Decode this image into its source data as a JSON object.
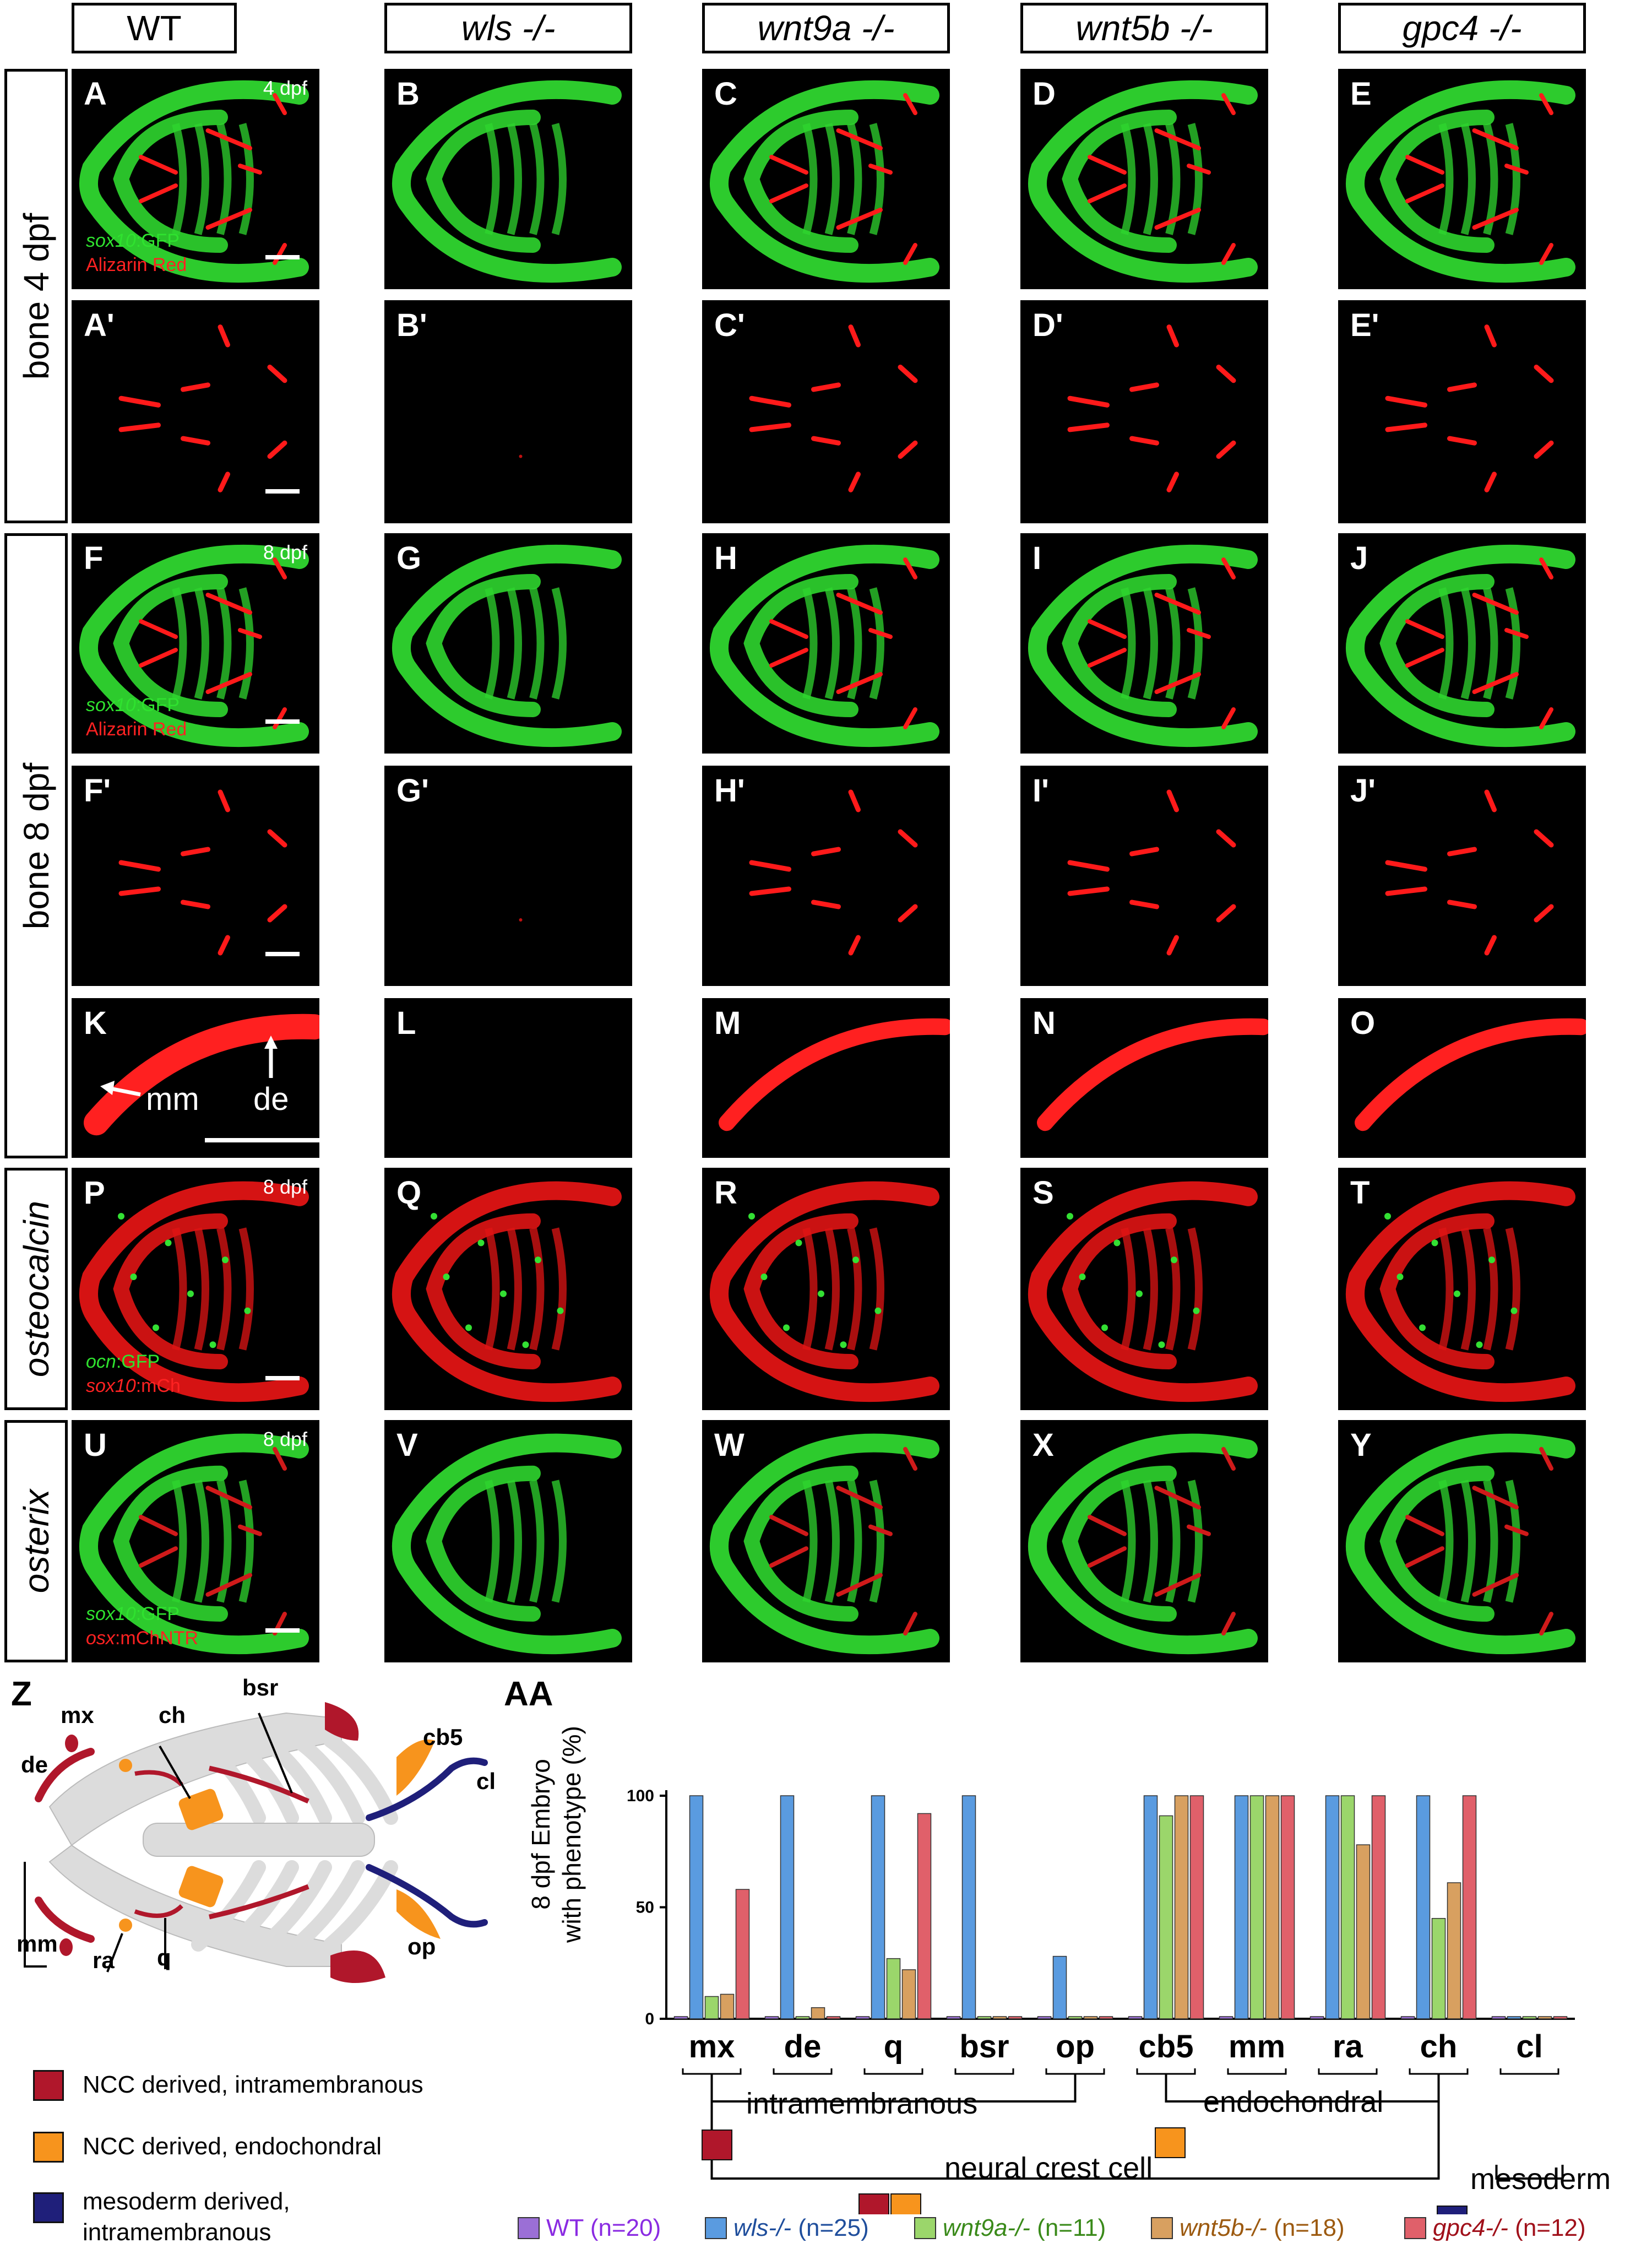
{
  "columns": [
    {
      "text": "WT",
      "italic": false
    },
    {
      "text": "wls -/-",
      "italic": true
    },
    {
      "text": "wnt9a -/-",
      "italic": true
    },
    {
      "text": "wnt5b -/-",
      "italic": true
    },
    {
      "text": "gpc4 -/-",
      "italic": true
    }
  ],
  "row_labels": {
    "bone4": "bone 4 dpf",
    "bone8": "bone 8 dpf",
    "osteocalcin": "osteocalcin",
    "osterix": "osterix"
  },
  "panels": {
    "row1": [
      "A",
      "B",
      "C",
      "D",
      "E"
    ],
    "row2": [
      "A'",
      "B'",
      "C'",
      "D'",
      "E'"
    ],
    "row3": [
      "F",
      "G",
      "H",
      "I",
      "J"
    ],
    "row4": [
      "F'",
      "G'",
      "H'",
      "I'",
      "J'"
    ],
    "row5": [
      "K",
      "L",
      "M",
      "N",
      "O"
    ],
    "row6": [
      "P",
      "Q",
      "R",
      "S",
      "T"
    ],
    "row7": [
      "U",
      "V",
      "W",
      "X",
      "Y"
    ]
  },
  "stage_labels": {
    "dpf4": "4 dpf",
    "dpf8": "8 dpf"
  },
  "captions": {
    "row1": {
      "gene": "sox10",
      "suffix": ":GFP",
      "line2": "Alizarin Red"
    },
    "row3": {
      "gene": "sox10",
      "suffix": ":GFP",
      "line2": "Alizarin Red"
    },
    "row6": {
      "gene": "ocn",
      "suffix": ":GFP",
      "gene2": "sox10",
      "suffix2": ":mCh"
    },
    "row7": {
      "gene": "sox10",
      "suffix": ":GFP",
      "gene2": "osx",
      "suffix2": ":mChNTR"
    }
  },
  "k_annotations": {
    "mm": "mm",
    "de": "de"
  },
  "diagram": {
    "panel_letter": "Z",
    "labels": {
      "mx": "mx",
      "de": "de",
      "ch": "ch",
      "bsr": "bsr",
      "cb5": "cb5",
      "cl": "cl",
      "mm": "mm",
      "ra": "ra",
      "q": "q",
      "op": "op"
    },
    "colors": {
      "ncc_intramembranous": "#b0172b",
      "ncc_endochondral": "#f7941d",
      "mesoderm": "#1f1f7a",
      "cartilage": "#dcdcdc"
    },
    "legend": [
      {
        "label": "NCC derived, intramembranous",
        "color": "#b0172b"
      },
      {
        "label": "NCC derived, endochondral",
        "color": "#f7941d"
      },
      {
        "label": "mesoderm derived,",
        "label2": "intramembranous",
        "color": "#1f1f7a"
      }
    ]
  },
  "chart_panel_letter": "AA",
  "chart_data": {
    "type": "bar",
    "ylabel_line1": "8 dpf Embryo",
    "ylabel_line2": "with phenotype (%)",
    "ylim": [
      0,
      100
    ],
    "yticks": [
      "0",
      "50",
      "100"
    ],
    "categories": [
      "mx",
      "de",
      "q",
      "bsr",
      "op",
      "cb5",
      "mm",
      "ra",
      "ch",
      "cl"
    ],
    "series": [
      {
        "name": "WT (n=20)",
        "color": "#9b6fd6",
        "values": [
          1,
          1,
          1,
          1,
          1,
          1,
          1,
          1,
          1,
          1
        ]
      },
      {
        "name": "wls-/- (n=25)",
        "color": "#5a9be0",
        "values": [
          100,
          100,
          100,
          100,
          28,
          100,
          100,
          100,
          100,
          1
        ]
      },
      {
        "name": "wnt9a-/- (n=11)",
        "color": "#9bd66b",
        "values": [
          10,
          1,
          27,
          1,
          1,
          91,
          100,
          100,
          45,
          1
        ]
      },
      {
        "name": "wnt5b-/- (n=18)",
        "color": "#d8a060",
        "values": [
          11,
          5,
          22,
          1,
          1,
          100,
          100,
          78,
          61,
          1
        ]
      },
      {
        "name": "gpc4-/- (n=12)",
        "color": "#e0606a",
        "values": [
          58,
          1,
          92,
          1,
          1,
          100,
          100,
          100,
          100,
          1
        ]
      }
    ],
    "groups": {
      "intramembranous": "intramembranous",
      "endochondral": "endochondral",
      "neural_crest": "neural crest cell",
      "mesoderm": "mesoderm"
    },
    "legend_items": [
      {
        "name": "WT",
        "n": "(n=20)",
        "color": "#9b6fd6",
        "text_color": "#8a2be2"
      },
      {
        "name": "wls-/-",
        "n": "(n=25)",
        "color": "#5a9be0",
        "text_color": "#1f4e9c"
      },
      {
        "name": "wnt9a-/-",
        "n": "(n=11)",
        "color": "#9bd66b",
        "text_color": "#3a8a1a"
      },
      {
        "name": "wnt5b-/-",
        "n": "(n=18)",
        "color": "#d8a060",
        "text_color": "#9c5a10"
      },
      {
        "name": "gpc4-/-",
        "n": "(n=12)",
        "color": "#e0606a",
        "text_color": "#a0101a"
      }
    ]
  }
}
